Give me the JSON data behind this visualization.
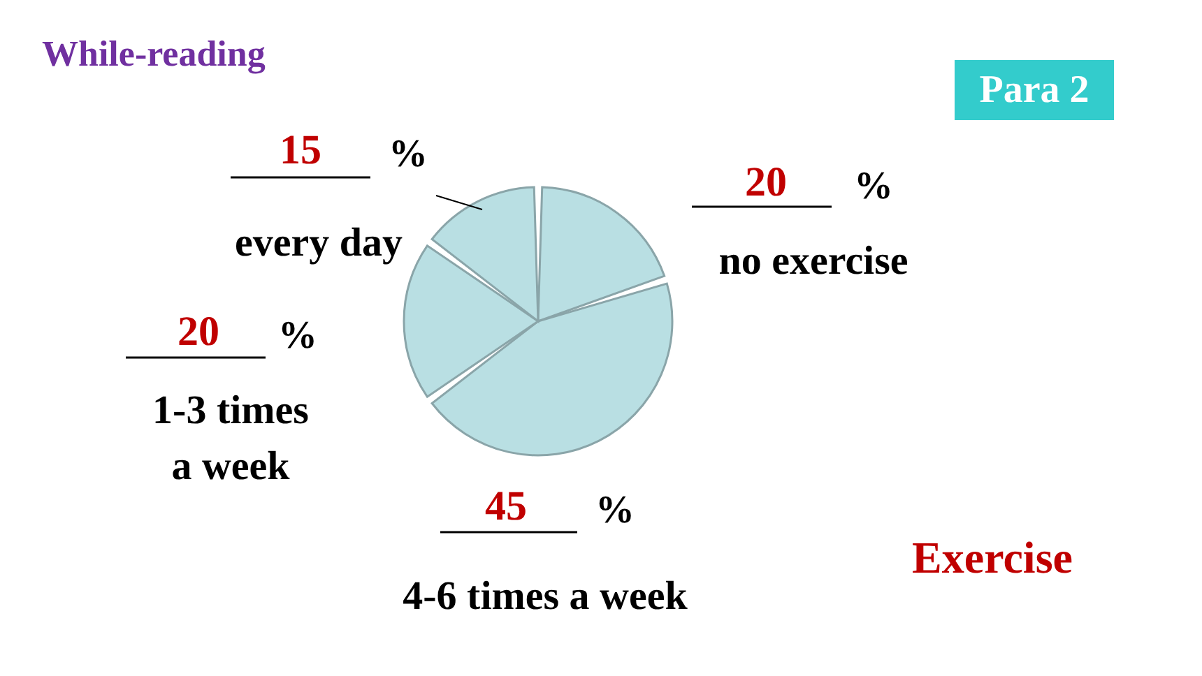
{
  "chart_data": {
    "type": "pie",
    "title": "While-reading",
    "subtitle": "Para 2",
    "categories": [
      "no exercise",
      "4-6 times a week",
      "1-3 times\na week",
      "every day"
    ],
    "values": [
      20,
      45,
      20,
      15
    ],
    "colors": [
      "#b9dfe3",
      "#b9dfe3",
      "#b9dfe3",
      "#b9dfe3"
    ],
    "data_labels": true,
    "annotations": [
      "%",
      "%",
      "%",
      "%",
      "Exercise"
    ]
  }
}
